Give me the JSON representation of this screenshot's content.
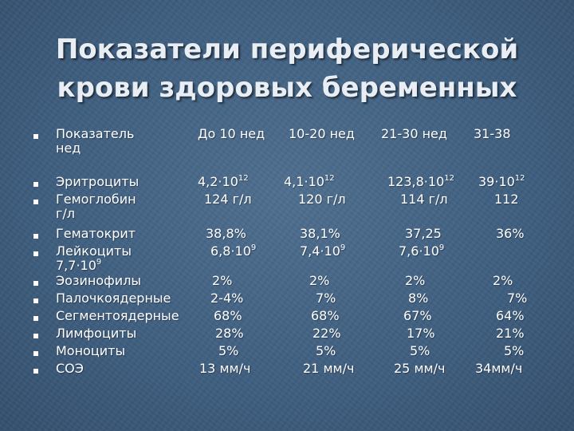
{
  "title_line1": "Показатели периферической",
  "title_line2": "крови здоровых беременных",
  "header": {
    "label": "Показатель",
    "label_cont": "нед",
    "c1": "До 10 нед",
    "c2": "10-20 нед",
    "c3": "21-30 нед",
    "c4": "31-38"
  },
  "rows": [
    {
      "label": "Эритроциты",
      "c1": "4,2·10",
      "c1_sup": "12",
      "c2": "4,1·10",
      "c2_sup": "12",
      "c3": "123,8·10",
      "c3_sup": "12",
      "c4": "39·10",
      "c4_sup": "12"
    },
    {
      "label": "Гемоглобин",
      "label_cont": "г/л",
      "c1": "124 г/л",
      "c2": "120 г/л",
      "c3": "114 г/л",
      "c4": "112"
    },
    {
      "label": "Гематокрит",
      "c1": "38,8%",
      "c2": "38,1%",
      "c3": "37,25",
      "c4": "36%"
    },
    {
      "label": "Лейкоциты",
      "label_cont": "7,7·10",
      "label_cont_sup": "9",
      "c1": "6,8·10",
      "c1_sup": "9",
      "c2": "7,4·10",
      "c2_sup": "9",
      "c3": "7,6·10",
      "c3_sup": "9"
    },
    {
      "label": "Эозинофилы",
      "c1": "2%",
      "c2": "2%",
      "c3": "2%",
      "c4": "2%"
    },
    {
      "label": "Палочкоядерные",
      "c1": "2-4%",
      "c2": "7%",
      "c3": "8%",
      "c4": "7%"
    },
    {
      "label": "Сегментоядерные",
      "c1": "68%",
      "c2": "68%",
      "c3": "67%",
      "c4": "64%"
    },
    {
      "label": "Лимфоциты",
      "c1": "28%",
      "c2": "22%",
      "c3": "17%",
      "c4": "21%"
    },
    {
      "label": "Моноциты",
      "c1": "5%",
      "c2": "5%",
      "c3": "5%",
      "c4": "5%"
    },
    {
      "label": "СОЭ",
      "c1": "13 мм/ч",
      "c2": "21 мм/ч",
      "c3": "25 мм/ч",
      "c4": "34мм/ч"
    }
  ]
}
